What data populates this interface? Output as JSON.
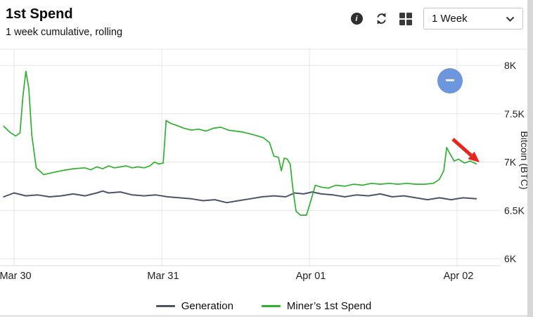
{
  "header": {
    "title": "1st Spend",
    "subtitle": "1 week cumulative, rolling"
  },
  "toolbar": {
    "icons": {
      "info": {
        "name": "info-icon",
        "glyph": "i"
      },
      "refresh": {
        "name": "refresh-icon"
      },
      "grid": {
        "name": "layout-grid-icon"
      }
    },
    "range_selector": {
      "value": "1 Week"
    }
  },
  "zoom_button": {
    "label": "−"
  },
  "legend": [
    {
      "label": "Generation",
      "color": "#4a5568"
    },
    {
      "label": "Miner’s 1st Spend",
      "color": "#2fb12f"
    }
  ],
  "chart_data": {
    "type": "line",
    "title": "1st Spend",
    "subtitle": "1 week cumulative, rolling",
    "ylabel": "Bitcoin (BTC)",
    "x_ticks": [
      0,
      1,
      2,
      3
    ],
    "x_tick_labels": [
      "Mar 30",
      "Mar 31",
      "Apr 01",
      "Apr 02"
    ],
    "y_ticks": [
      6000,
      6500,
      7000,
      7500,
      8000
    ],
    "y_tick_labels": [
      "6K",
      "6.5K",
      "7K",
      "7.5K",
      "8K"
    ],
    "ylim": [
      5900,
      8150
    ],
    "xlim": [
      -0.1,
      3.3
    ],
    "grid": true,
    "legend_position": "bottom",
    "series": [
      {
        "name": "Generation",
        "color": "#4a5568",
        "width": 2,
        "x": [
          -0.07,
          0.0,
          0.08,
          0.16,
          0.24,
          0.32,
          0.4,
          0.48,
          0.56,
          0.6,
          0.64,
          0.72,
          0.8,
          0.88,
          0.96,
          1.04,
          1.12,
          1.2,
          1.28,
          1.36,
          1.44,
          1.52,
          1.6,
          1.68,
          1.76,
          1.84,
          1.9,
          1.96,
          2.02,
          2.08,
          2.16,
          2.24,
          2.32,
          2.4,
          2.48,
          2.56,
          2.64,
          2.72,
          2.8,
          2.88,
          2.96,
          3.04,
          3.13
        ],
        "y": [
          6640,
          6680,
          6650,
          6660,
          6640,
          6650,
          6670,
          6650,
          6680,
          6700,
          6680,
          6690,
          6660,
          6650,
          6660,
          6640,
          6630,
          6620,
          6600,
          6610,
          6580,
          6600,
          6620,
          6640,
          6650,
          6640,
          6680,
          6670,
          6690,
          6670,
          6660,
          6640,
          6660,
          6650,
          6670,
          6640,
          6650,
          6630,
          6610,
          6630,
          6610,
          6630,
          6620
        ]
      },
      {
        "name": "Miner’s 1st Spend",
        "color": "#2fb12f",
        "width": 1.7,
        "x": [
          -0.07,
          -0.03,
          0.01,
          0.04,
          0.06,
          0.08,
          0.1,
          0.12,
          0.15,
          0.2,
          0.26,
          0.32,
          0.4,
          0.48,
          0.52,
          0.56,
          0.6,
          0.64,
          0.68,
          0.72,
          0.76,
          0.8,
          0.84,
          0.88,
          0.92,
          0.95,
          0.98,
          1.01,
          1.03,
          1.06,
          1.1,
          1.15,
          1.2,
          1.25,
          1.3,
          1.35,
          1.4,
          1.45,
          1.5,
          1.55,
          1.6,
          1.65,
          1.69,
          1.73,
          1.76,
          1.79,
          1.81,
          1.83,
          1.85,
          1.87,
          1.89,
          1.91,
          1.94,
          1.98,
          2.01,
          2.04,
          2.08,
          2.13,
          2.18,
          2.24,
          2.3,
          2.36,
          2.42,
          2.48,
          2.54,
          2.6,
          2.66,
          2.72,
          2.78,
          2.84,
          2.88,
          2.91,
          2.93,
          2.95,
          2.98,
          3.01,
          3.05,
          3.09,
          3.13
        ],
        "y": [
          7370,
          7310,
          7270,
          7300,
          7680,
          7940,
          7760,
          7280,
          6940,
          6870,
          6890,
          6910,
          6930,
          6940,
          6920,
          6950,
          6930,
          6960,
          6940,
          6950,
          6960,
          6940,
          6950,
          6940,
          6960,
          7000,
          6980,
          6990,
          7430,
          7400,
          7380,
          7350,
          7330,
          7340,
          7320,
          7350,
          7360,
          7330,
          7320,
          7310,
          7290,
          7270,
          7250,
          7200,
          7060,
          7050,
          6910,
          7040,
          7030,
          6980,
          6700,
          6490,
          6450,
          6450,
          6600,
          6760,
          6740,
          6730,
          6760,
          6750,
          6770,
          6760,
          6780,
          6770,
          6780,
          6770,
          6780,
          6770,
          6770,
          6780,
          6820,
          6910,
          7150,
          7090,
          7010,
          7030,
          6990,
          7010,
          6980
        ]
      }
    ],
    "annotations": [
      {
        "type": "arrow",
        "color": "#e8251c",
        "target": "latest Miner’s 1st Spend value ≈ 7K"
      },
      {
        "type": "button",
        "label": "−",
        "color": "#6d96dd"
      }
    ]
  }
}
